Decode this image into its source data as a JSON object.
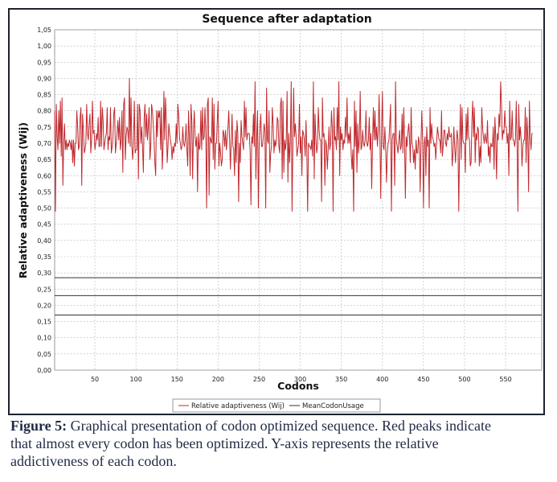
{
  "caption": {
    "label": "Figure 5:",
    "text": "Graphical presentation of codon optimized sequence. Red peaks indicate that almost every codon has been optimized. Y-axis represents the relative addictiveness of each codon."
  },
  "colors": {
    "series_line": "#c0282d",
    "mean_lines": "#333333",
    "grid": "#b9b9b9",
    "frame": "#1c2230"
  },
  "chart_data": {
    "type": "line",
    "title": "Sequence after adaptation",
    "xlabel": "Codons",
    "ylabel": "Relative adaptiveness (Wij)",
    "xlim": [
      1,
      594
    ],
    "ylim": [
      0.0,
      1.05
    ],
    "x_ticks": [
      "50",
      "100",
      "150",
      "200",
      "250",
      "300",
      "350",
      "400",
      "450",
      "500",
      "550"
    ],
    "y_ticks": [
      "0,00",
      "0,05",
      "0,10",
      "0,15",
      "0,20",
      "0,25",
      "0,30",
      "0,35",
      "0,40",
      "0,45",
      "0,50",
      "0,55",
      "0,60",
      "0,65",
      "0,70",
      "0,75",
      "0,80",
      "0,85",
      "0,90",
      "0,95",
      "1,00",
      "1,05"
    ],
    "grid": true,
    "legend_position": "bottom-center",
    "series": [
      {
        "name": "Relative adaptiveness (Wij)",
        "baseline": 0.7,
        "range": [
          0.49,
          0.9
        ],
        "n_points": 594,
        "values": [
          0.8,
          0.49,
          0.82,
          0.72,
          0.68,
          0.8,
          0.7,
          0.83,
          0.66,
          0.84,
          0.57,
          0.7,
          0.76,
          0.68,
          0.71,
          0.68,
          0.7,
          0.69,
          0.71,
          0.7,
          0.68,
          0.71,
          0.64,
          0.71,
          0.63,
          0.7,
          0.7,
          0.8,
          0.75,
          0.68,
          0.69,
          0.78,
          0.81,
          0.57,
          0.79,
          0.74,
          0.67,
          0.68,
          0.7,
          0.82,
          0.73,
          0.71,
          0.76,
          0.79,
          0.67,
          0.71,
          0.83,
          0.73,
          0.74,
          0.68,
          0.7,
          0.73,
          0.71,
          0.78,
          0.69,
          0.69,
          0.83,
          0.69,
          0.81,
          0.77,
          0.68,
          0.7,
          0.72,
          0.73,
          0.81,
          0.68,
          0.72,
          0.71,
          0.81,
          0.67,
          0.69,
          0.72,
          0.79,
          0.81,
          0.67,
          0.7,
          0.73,
          0.77,
          0.71,
          0.78,
          0.68,
          0.71,
          0.8,
          0.61,
          0.82,
          0.84,
          0.65,
          0.72,
          0.75,
          0.74,
          0.7,
          0.9,
          0.69,
          0.84,
          0.69,
          0.65,
          0.7,
          0.83,
          0.67,
          0.68,
          0.68,
          0.82,
          0.59,
          0.82,
          0.8,
          0.7,
          0.75,
          0.69,
          0.61,
          0.78,
          0.82,
          0.72,
          0.79,
          0.71,
          0.75,
          0.81,
          0.65,
          0.69,
          0.82,
          0.8,
          0.76,
          0.71,
          0.64,
          0.6,
          0.8,
          0.72,
          0.8,
          0.78,
          0.8,
          0.68,
          0.81,
          0.62,
          0.69,
          0.86,
          0.71,
          0.84,
          0.77,
          0.64,
          0.69,
          0.76,
          0.73,
          0.71,
          0.69,
          0.65,
          0.69,
          0.67,
          0.7,
          0.69,
          0.76,
          0.7,
          0.82,
          0.79,
          0.72,
          0.7,
          0.68,
          0.69,
          0.75,
          0.7,
          0.69,
          0.71,
          0.76,
          0.68,
          0.63,
          0.8,
          0.72,
          0.6,
          0.82,
          0.77,
          0.59,
          0.74,
          0.8,
          0.72,
          0.69,
          0.72,
          0.55,
          0.73,
          0.68,
          0.69,
          0.8,
          0.68,
          0.81,
          0.71,
          0.72,
          0.81,
          0.73,
          0.5,
          0.82,
          0.84,
          0.54,
          0.72,
          0.71,
          0.7,
          0.84,
          0.65,
          0.82,
          0.62,
          0.7,
          0.7,
          0.77,
          0.83,
          0.63,
          0.7,
          0.67,
          0.63,
          0.65,
          0.74,
          0.73,
          0.69,
          0.74,
          0.68,
          0.71,
          0.75,
          0.8,
          0.71,
          0.62,
          0.71,
          0.79,
          0.69,
          0.68,
          0.6,
          0.74,
          0.64,
          0.77,
          0.73,
          0.52,
          0.7,
          0.64,
          0.77,
          0.72,
          0.7,
          0.68,
          0.83,
          0.72,
          0.81,
          0.71,
          0.73,
          0.73,
          0.73,
          0.67,
          0.51,
          0.72,
          0.7,
          0.79,
          0.69,
          0.89,
          0.59,
          0.72,
          0.8,
          0.5,
          0.69,
          0.75,
          0.79,
          0.69,
          0.69,
          0.72,
          0.76,
          0.74,
          0.5,
          0.87,
          0.71,
          0.7,
          0.8,
          0.61,
          0.67,
          0.69,
          0.81,
          0.76,
          0.67,
          0.71,
          0.69,
          0.71,
          0.78,
          0.77,
          0.69,
          0.67,
          0.82,
          0.84,
          0.59,
          0.83,
          0.61,
          0.71,
          0.68,
          0.71,
          0.86,
          0.58,
          0.73,
          0.64,
          0.71,
          0.89,
          0.49,
          0.69,
          0.87,
          0.72,
          0.76,
          0.72,
          0.66,
          0.68,
          0.7,
          0.82,
          0.67,
          0.72,
          0.6,
          0.74,
          0.73,
          0.71,
          0.66,
          0.77,
          0.68,
          0.49,
          0.7,
          0.69,
          0.69,
          0.68,
          0.71,
          0.66,
          0.89,
          0.59,
          0.79,
          0.72,
          0.67,
          0.69,
          0.81,
          0.74,
          0.71,
          0.71,
          0.52,
          0.84,
          0.72,
          0.73,
          0.57,
          0.71,
          0.69,
          0.62,
          0.68,
          0.75,
          0.68,
          0.7,
          0.8,
          0.75,
          0.49,
          0.81,
          0.71,
          0.72,
          0.68,
          0.81,
          0.71,
          0.89,
          0.6,
          0.75,
          0.71,
          0.73,
          0.68,
          0.71,
          0.7,
          0.78,
          0.72,
          0.84,
          0.7,
          0.73,
          0.7,
          0.75,
          0.67,
          0.62,
          0.68,
          0.49,
          0.83,
          0.69,
          0.8,
          0.61,
          0.76,
          0.67,
          0.71,
          0.86,
          0.68,
          0.69,
          0.74,
          0.7,
          0.69,
          0.71,
          0.8,
          0.7,
          0.69,
          0.71,
          0.78,
          0.68,
          0.73,
          0.56,
          0.7,
          0.81,
          0.71,
          0.8,
          0.71,
          0.75,
          0.69,
          0.74,
          0.85,
          0.72,
          0.53,
          0.74,
          0.86,
          0.69,
          0.68,
          0.75,
          0.69,
          0.58,
          0.67,
          0.7,
          0.71,
          0.76,
          0.82,
          0.49,
          0.71,
          0.73,
          0.73,
          0.57,
          0.89,
          0.71,
          0.69,
          0.67,
          0.71,
          0.74,
          0.68,
          0.69,
          0.79,
          0.67,
          0.81,
          0.71,
          0.53,
          0.72,
          0.69,
          0.73,
          0.76,
          0.72,
          0.64,
          0.81,
          0.7,
          0.69,
          0.64,
          0.68,
          0.62,
          0.71,
          0.67,
          0.67,
          0.72,
          0.7,
          0.55,
          0.7,
          0.8,
          0.71,
          0.5,
          0.7,
          0.72,
          0.6,
          0.75,
          0.69,
          0.71,
          0.5,
          0.81,
          0.7,
          0.76,
          0.72,
          0.71,
          0.69,
          0.7,
          0.65,
          0.7,
          0.75,
          0.73,
          0.71,
          0.71,
          0.67,
          0.8,
          0.66,
          0.69,
          0.74,
          0.74,
          0.7,
          0.69,
          0.73,
          0.71,
          0.75,
          0.72,
          0.72,
          0.73,
          0.63,
          0.67,
          0.75,
          0.69,
          0.64,
          0.7,
          0.74,
          0.71,
          0.49,
          0.7,
          0.82,
          0.65,
          0.81,
          0.71,
          0.7,
          0.7,
          0.61,
          0.79,
          0.71,
          0.81,
          0.72,
          0.71,
          0.63,
          0.64,
          0.77,
          0.83,
          0.72,
          0.81,
          0.64,
          0.73,
          0.71,
          0.75,
          0.74,
          0.63,
          0.69,
          0.64,
          0.81,
          0.75,
          0.72,
          0.7,
          0.73,
          0.71,
          0.7,
          0.77,
          0.66,
          0.69,
          0.64,
          0.7,
          0.69,
          0.69,
          0.75,
          0.62,
          0.78,
          0.72,
          0.59,
          0.73,
          0.71,
          0.79,
          0.75,
          0.89,
          0.82,
          0.71,
          0.74,
          0.73,
          0.8,
          0.75,
          0.75,
          0.7,
          0.73,
          0.6,
          0.83,
          0.71,
          0.72,
          0.8,
          0.71,
          0.71,
          0.69,
          0.71,
          0.83,
          0.7,
          0.49,
          0.82,
          0.71,
          0.75,
          0.71,
          0.63,
          0.69,
          0.71,
          0.71,
          0.81,
          0.64,
          0.78,
          0.72,
          0.55,
          0.83,
          0.72,
          0.68,
          0.73,
          0.73
        ]
      },
      {
        "name": "MeanCodonUsage",
        "values": [
          0.17,
          0.23,
          0.285
        ]
      }
    ]
  }
}
